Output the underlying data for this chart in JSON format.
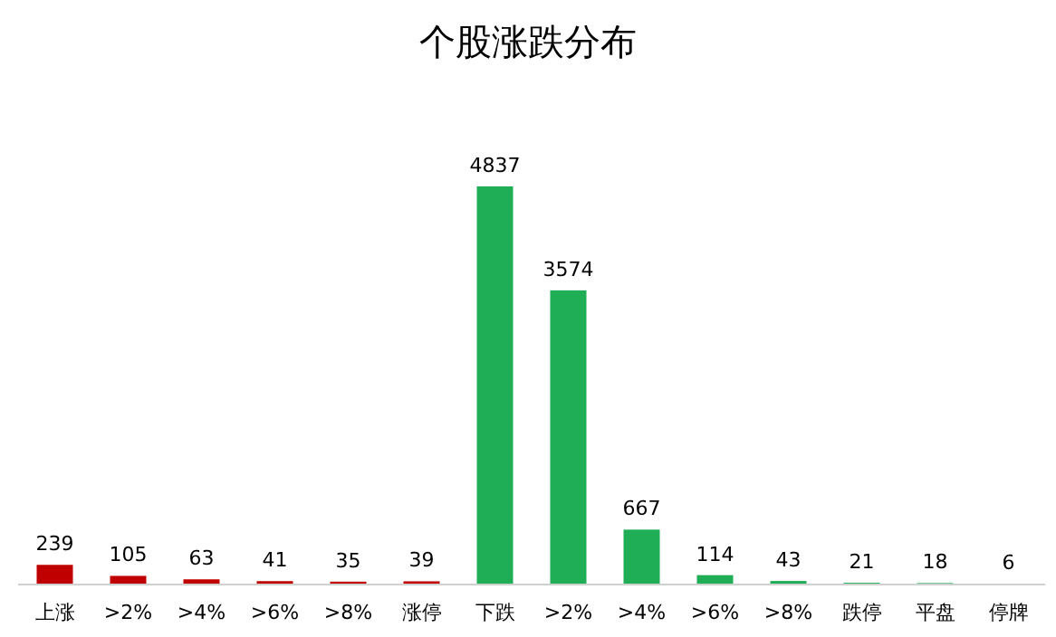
{
  "chart_data": {
    "type": "bar",
    "title": "个股涨跌分布",
    "categories": [
      "上涨",
      ">2%",
      ">4%",
      ">6%",
      ">8%",
      "涨停",
      "下跌",
      ">2%",
      ">4%",
      ">6%",
      ">8%",
      "跌停",
      "平盘",
      "停牌"
    ],
    "values": [
      239,
      105,
      63,
      41,
      35,
      39,
      4837,
      3574,
      667,
      114,
      43,
      21,
      18,
      6
    ],
    "colors": [
      "#c00000",
      "#c00000",
      "#c00000",
      "#c00000",
      "#c00000",
      "#c00000",
      "#1fae55",
      "#1fae55",
      "#1fae55",
      "#1fae55",
      "#1fae55",
      "#1fae55",
      "#1fae55",
      "#1fae55"
    ],
    "data_labels": true
  }
}
